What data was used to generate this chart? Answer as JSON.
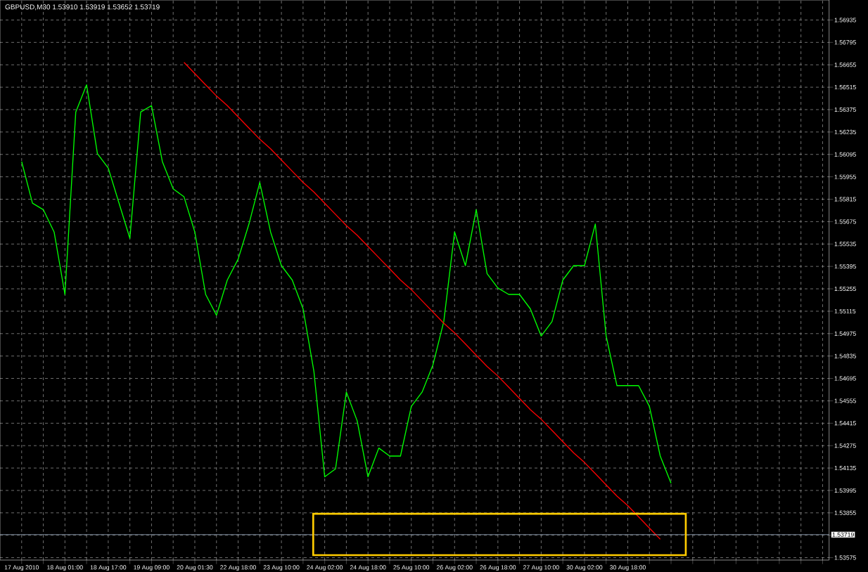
{
  "chart_data": {
    "type": "line",
    "title": "GBPUSD,M30  1.53910 1.53919 1.53652 1.53719",
    "categories": [
      "17 Aug 2010",
      null,
      null,
      null,
      "18 Aug 01:00",
      null,
      null,
      null,
      "18 Aug 17:00",
      null,
      null,
      null,
      "19 Aug 09:00",
      null,
      null,
      null,
      "20 Aug 01:30",
      null,
      null,
      null,
      "22 Aug 18:00",
      null,
      null,
      null,
      "23 Aug 10:00",
      null,
      null,
      null,
      "24 Aug 02:00",
      null,
      null,
      null,
      "24 Aug 18:00",
      null,
      null,
      null,
      "25 Aug 10:00",
      null,
      null,
      null,
      "26 Aug 02:00",
      null,
      null,
      null,
      "26 Aug 18:00",
      null,
      null,
      null,
      "27 Aug 10:00",
      null,
      null,
      null,
      "30 Aug 02:00",
      null,
      null,
      null,
      "30 Aug 18:00",
      null,
      null,
      null,
      null,
      null,
      null,
      null,
      null,
      null,
      null,
      null,
      null,
      null,
      null,
      null,
      null,
      null,
      null
    ],
    "series": [
      {
        "color": "#00ff00",
        "values": [
          1.5605,
          1.5579,
          1.5575,
          1.5561,
          1.5522,
          1.5636,
          1.5653,
          1.561,
          1.5601,
          1.5579,
          1.5557,
          1.5636,
          1.564,
          1.5605,
          1.5588,
          1.5583,
          1.5561,
          1.5522,
          1.5509,
          1.5531,
          1.5544,
          1.5566,
          1.5592,
          1.5561,
          1.554,
          1.5531,
          1.5513,
          1.5474,
          1.5408,
          1.5413,
          1.5461,
          1.5443,
          1.5408,
          1.5426,
          1.5421,
          1.5421,
          1.5452,
          1.5461,
          1.5478,
          1.5505,
          1.5561,
          1.554,
          1.5575,
          1.5535,
          1.5526,
          1.5522,
          1.5522,
          1.5513,
          1.5496,
          1.5505,
          1.5531,
          1.554,
          1.554,
          1.5566,
          1.5496,
          1.5465,
          1.5465,
          1.5465,
          1.5452,
          1.5421,
          1.5404,
          null,
          null,
          null,
          null,
          null,
          null,
          null,
          null,
          null,
          null,
          null,
          null,
          null,
          null
        ]
      },
      {
        "type": "line",
        "color": "#ff0000",
        "values": [
          null,
          null,
          null,
          null,
          null,
          null,
          null,
          null,
          null,
          null,
          null,
          null,
          null,
          null,
          null,
          1.5667,
          1.566,
          1.5653,
          1.5646,
          1.564,
          1.5633,
          1.5626,
          1.5619,
          1.5613,
          1.5606,
          1.5599,
          1.5592,
          1.5586,
          1.5579,
          1.5572,
          1.5565,
          1.5559,
          1.5552,
          1.5545,
          1.5538,
          1.5531,
          1.5525,
          1.5518,
          1.5511,
          1.5504,
          1.5498,
          1.5491,
          1.5484,
          1.5477,
          1.5471,
          1.5464,
          1.5457,
          1.545,
          1.5444,
          1.5437,
          1.543,
          1.5423,
          1.5417,
          1.541,
          1.5403,
          1.5396,
          1.539,
          1.5383,
          1.5376,
          1.5369,
          null,
          null,
          null,
          null,
          null,
          null,
          null,
          null,
          null,
          null,
          null,
          null,
          null,
          null,
          null
        ]
      }
    ],
    "ylim": [
      1.5356,
      1.5706
    ],
    "yticks": [
      1.56935,
      1.56795,
      1.56655,
      1.56515,
      1.56375,
      1.56235,
      1.56095,
      1.55955,
      1.55815,
      1.55675,
      1.55535,
      1.55395,
      1.55255,
      1.55115,
      1.54975,
      1.54835,
      1.54695,
      1.54555,
      1.54415,
      1.54275,
      1.54135,
      1.53995,
      1.53855,
      {
        "value": 1.53715,
        "label": null
      },
      1.53575
    ],
    "grid": true,
    "ref_lines": [
      {
        "axis": "y",
        "value": 1.53719,
        "label": "1.53719",
        "color": "#8c9cb0"
      }
    ]
  }
}
